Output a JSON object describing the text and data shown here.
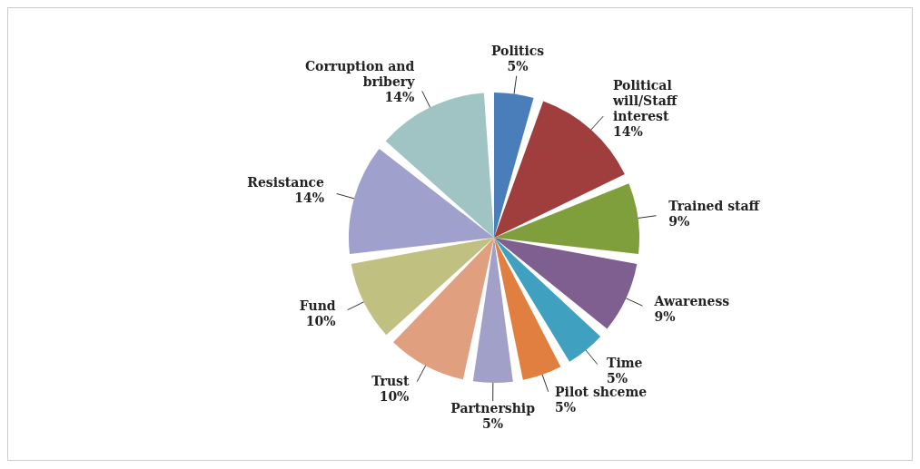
{
  "chart_data": {
    "type": "pie",
    "categories": [
      "Politics",
      "Political will/Staff interest",
      "Trained staff",
      "Awareness",
      "Time",
      "Pilot shceme",
      "Partnership",
      "Trust",
      "Fund",
      "Resistance",
      "Corruption and bribery"
    ],
    "values": [
      5,
      14,
      9,
      9,
      5,
      5,
      5,
      10,
      10,
      14,
      14
    ],
    "value_labels": [
      "5%",
      "14%",
      "9%",
      "9%",
      "5%",
      "5%",
      "5%",
      "10%",
      "10%",
      "14%",
      "14%"
    ],
    "colors": [
      "#4a7ebb",
      "#a03d3d",
      "#7f9f3d",
      "#7f5f8f",
      "#3fa0c0",
      "#e07f3f",
      "#a0a0c8",
      "#e0a080",
      "#c0c080",
      "#a0a0cc",
      "#a0c4c4"
    ],
    "legend": false
  }
}
